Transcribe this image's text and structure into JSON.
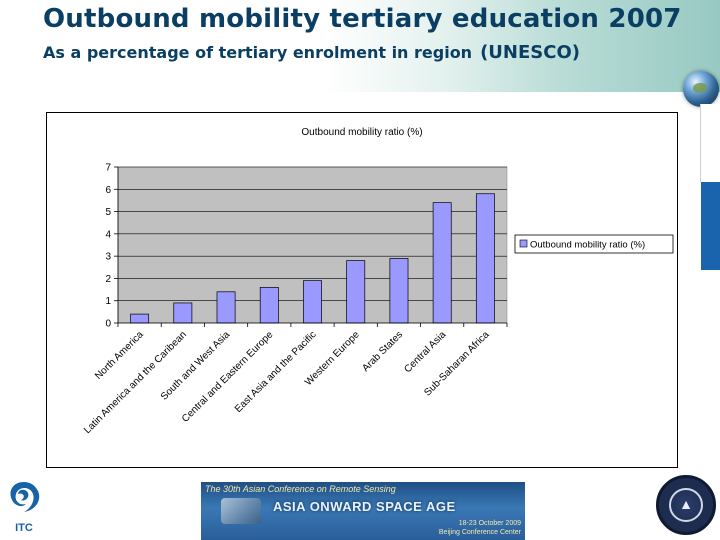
{
  "slide": {
    "title": "Outbound mobility tertiary education 2007",
    "subtitle": "As a percentage of tertiary enrolment in region",
    "subtitle_source": "(UNESCO)"
  },
  "footer": {
    "logo_label": "ITC",
    "banner_top": "The 30th Asian Conference on Remote Sensing",
    "banner_main": "ASIA ONWARD SPACE AGE",
    "banner_date": "18-23 October 2009",
    "banner_venue": "Beijing Conference Center"
  },
  "colors": {
    "title": "#0a3e63",
    "bar_fill": "#9999ff",
    "plot_bg": "#c0c0c0",
    "side_strip": "#1a63ad"
  },
  "icons": [
    "globe-icon",
    "itc-logo-icon",
    "satellite-icon",
    "seal-icon"
  ],
  "chart_data": {
    "type": "bar",
    "title": "Outbound mobility ratio (%)",
    "xlabel": "",
    "ylabel": "",
    "ylim": [
      0,
      7
    ],
    "yticks": [
      0,
      1,
      2,
      3,
      4,
      5,
      6,
      7
    ],
    "grid": true,
    "legend_position": "right",
    "categories": [
      "North America",
      "Latin America and the Caribean",
      "South and West Asia",
      "Central and Eastern Europe",
      "East Asia and the Pacific",
      "Western Europe",
      "Arab States",
      "Central Asia",
      "Sub-Saharan Africa"
    ],
    "series": [
      {
        "name": "Outbound mobility ratio (%)",
        "values": [
          0.4,
          0.9,
          1.4,
          1.6,
          1.9,
          2.8,
          2.9,
          5.4,
          5.8
        ]
      }
    ]
  }
}
